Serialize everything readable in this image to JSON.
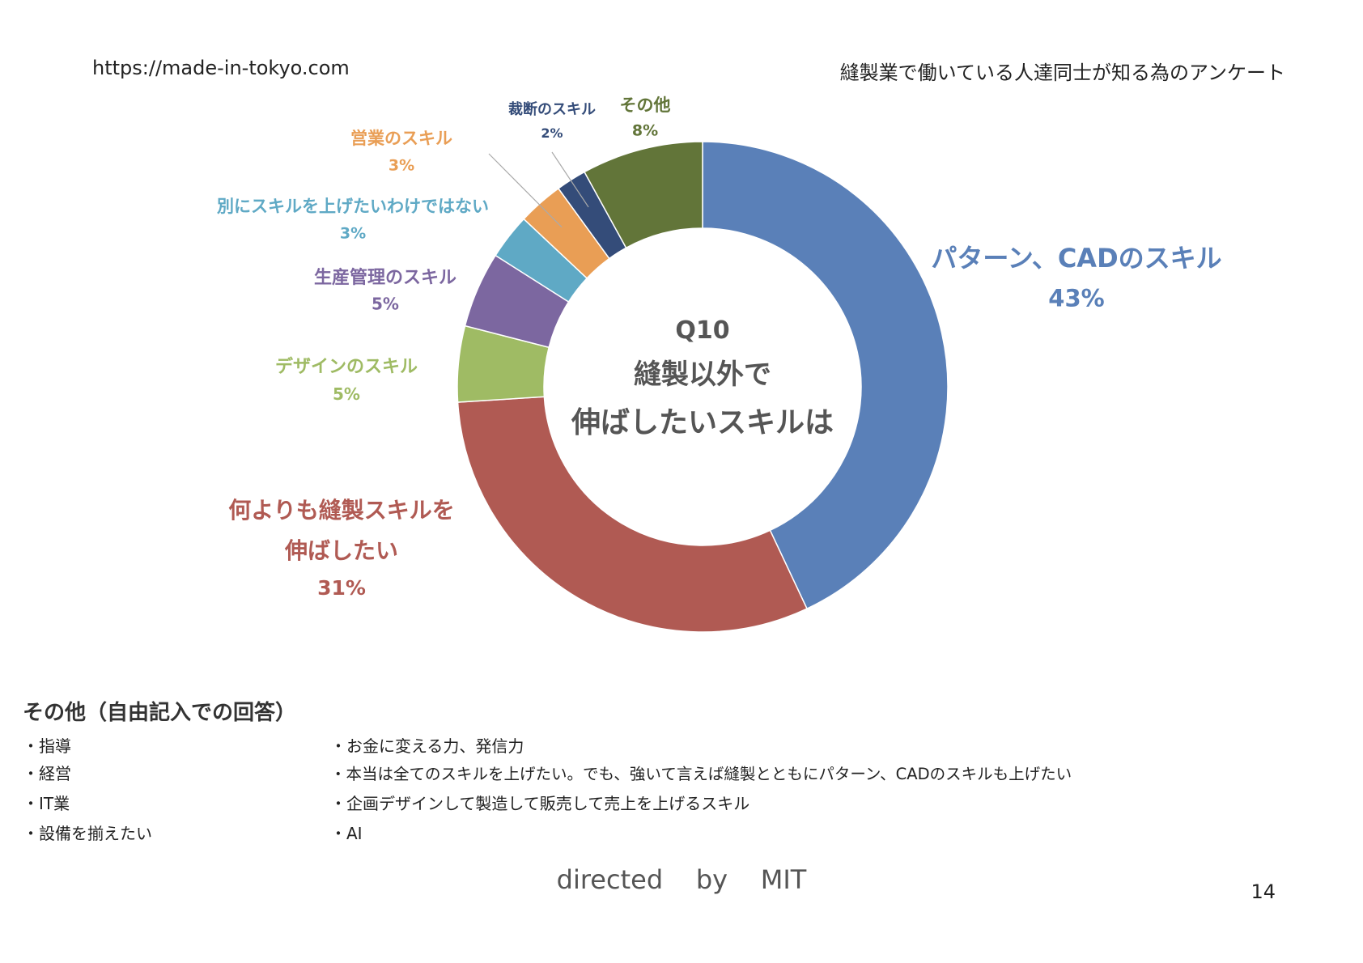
{
  "header": {
    "url": "https://made-in-tokyo.com",
    "survey_title": "縫製業で働いている人達同士が知る為のアンケート"
  },
  "chart_data": {
    "type": "pie",
    "donut": true,
    "center_label": [
      "Q10",
      "縫製以外で",
      "伸ばしたいスキルは"
    ],
    "slices": [
      {
        "label": [
          "パターン、CADのスキル"
        ],
        "value": 43,
        "pct_text": "43%",
        "color": "#5a80b8"
      },
      {
        "label": [
          "何よりも縫製スキルを",
          "伸ばしたい"
        ],
        "value": 31,
        "pct_text": "31%",
        "color": "#b05a53"
      },
      {
        "label": [
          "デザインのスキル"
        ],
        "value": 5,
        "pct_text": "5%",
        "color": "#9fbb64"
      },
      {
        "label": [
          "生産管理のスキル"
        ],
        "value": 5,
        "pct_text": "5%",
        "color": "#7c67a0"
      },
      {
        "label": [
          "別にスキルを上げたいわけではない"
        ],
        "value": 3,
        "pct_text": "3%",
        "color": "#5fa9c5"
      },
      {
        "label": [
          "営業のスキル"
        ],
        "value": 3,
        "pct_text": "3%",
        "color": "#e99e55"
      },
      {
        "label": [
          "裁断のスキル"
        ],
        "value": 2,
        "pct_text": "2%",
        "color": "#344c79"
      },
      {
        "label": [
          "その他"
        ],
        "value": 8,
        "pct_text": "8%",
        "color": "#627539"
      }
    ]
  },
  "other": {
    "title": "その他（自由記入での回答）",
    "left_items": [
      "・指導",
      "・経営",
      "・IT業",
      "・設備を揃えたい"
    ],
    "right_items": [
      "・お金に変える力、発信力",
      "・本当は全てのスキルを上げたい。でも、強いて言えば縫製とともにパターン、CADのスキルも上げたい",
      "・企画デザインして製造して販売して売上を上げるスキル",
      "・AI"
    ]
  },
  "footer": {
    "directed": "directed    by    MIT",
    "page_number": "14"
  }
}
